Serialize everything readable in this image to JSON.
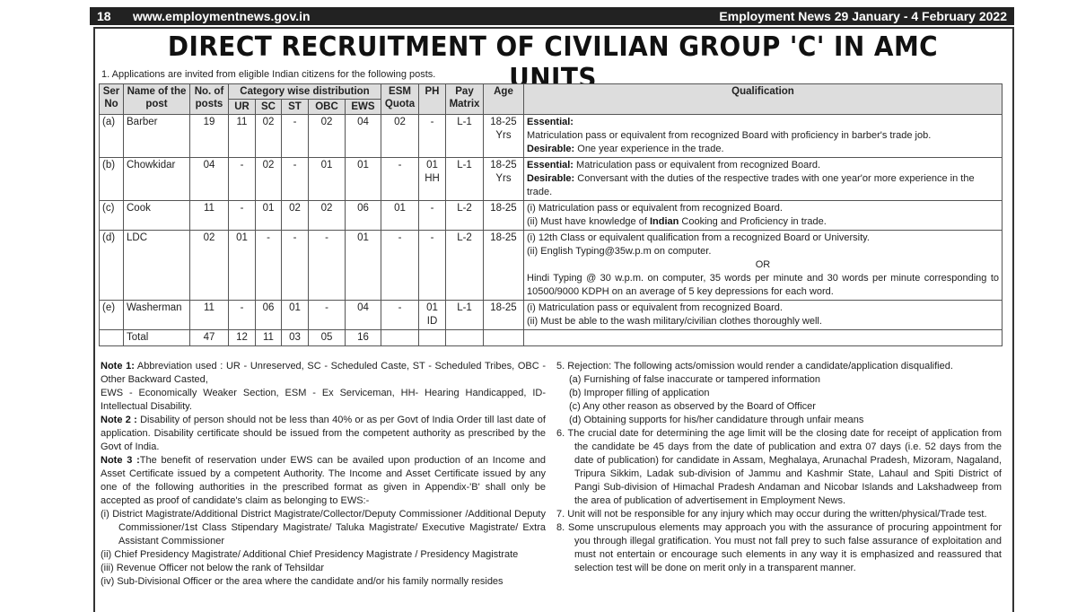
{
  "header": {
    "page_number": "18",
    "website": "www.employmentnews.gov.in",
    "edition": "Employment News 29 January - 4 February 2022"
  },
  "title": "DIRECT RECRUITMENT OF CIVILIAN GROUP 'C' IN AMC UNITS",
  "intro": "1.  Applications are invited from eligible Indian citizens for the following posts.",
  "table": {
    "headers": {
      "ser": "Ser No",
      "name": "Name of the post",
      "posts": "No. of posts",
      "category": "Category wise distribution",
      "ur": "UR",
      "sc": "SC",
      "st": "ST",
      "obc": "OBC",
      "ews": "EWS",
      "esm": "ESM Quota",
      "ph": "PH",
      "pay": "Pay Matrix",
      "age": "Age",
      "qualification": "Qualification"
    },
    "rows": [
      {
        "ser": "(a)",
        "name": "Barber",
        "posts": "19",
        "ur": "11",
        "sc": "02",
        "st": "-",
        "obc": "02",
        "ews": "04",
        "esm": "02",
        "ph": "-",
        "pay": "L-1",
        "age": "18-25 Yrs",
        "q": [
          "Essential:",
          "Matriculation pass or equivalent from recognized Board with proficiency in barber's trade job.",
          "Desirable:",
          " One year experience in the trade."
        ]
      },
      {
        "ser": "(b)",
        "name": "Chowkidar",
        "posts": "04",
        "ur": "-",
        "sc": "02",
        "st": "-",
        "obc": "01",
        "ews": "01",
        "esm": "-",
        "ph": "01 HH",
        "pay": "L-1",
        "age": "18-25 Yrs",
        "q": [
          "Essential:",
          " Matriculation pass or equivalent from recognized Board.",
          "Desirable:",
          " Conversant with the duties of the respective trades with one year'or more experience in the trade."
        ]
      },
      {
        "ser": "(c)",
        "name": "Cook",
        "posts": "11",
        "ur": "-",
        "sc": "01",
        "st": "02",
        "obc": "02",
        "ews": "06",
        "esm": "01",
        "ph": "-",
        "pay": "L-2",
        "age": "18-25",
        "q": [
          "(i)  Matriculation pass or equivalent from recognized Board.",
          "(ii)  Must have knowledge of ",
          "Indian",
          " Cooking and Proficiency in trade."
        ]
      },
      {
        "ser": "(d)",
        "name": "LDC",
        "posts": "02",
        "ur": "01",
        "sc": "-",
        "st": "-",
        "obc": "-",
        "ews": "01",
        "esm": "-",
        "ph": "-",
        "pay": "L-2",
        "age": "18-25",
        "q": [
          "(i)  12th Class or equivalent qualification from a recognized Board or University.",
          "(ii)  English Typing@35w.p.m on computer.",
          "OR",
          "Hindi Typing @ 30 w.p.m. on computer, 35 words per minute and 30 words per minute corresponding to 10500/9000 KDPH on an average of 5 key depressions for each word."
        ]
      },
      {
        "ser": "(e)",
        "name": "Washerman",
        "posts": "11",
        "ur": "-",
        "sc": "06",
        "st": "01",
        "obc": "-",
        "ews": "04",
        "esm": "-",
        "ph": "01 ID",
        "pay": "L-1",
        "age": "18-25",
        "q": [
          "(i)  Matriculation pass or equivalent from recognized Board.",
          "(ii)  Must be able to the wash military/civilian clothes thoroughly well."
        ]
      }
    ],
    "total": {
      "label": "Total",
      "posts": "47",
      "ur": "12",
      "sc": "11",
      "st": "03",
      "obc": "05",
      "ews": "16"
    }
  },
  "notes_left": {
    "n1_label": "Note 1:",
    "n1": " Abbreviation used : UR - Unreserved, SC - Scheduled Caste, ST - Scheduled Tribes, OBC - Other Backward Casted,",
    "n1b": "EWS - Economically Weaker Section, ESM - Ex Serviceman, HH- Hearing Handicapped, ID- Intellectual Disability.",
    "n2_label": "Note 2 :",
    "n2": " Disability of person should not be less than 40% or as per Govt of India Order till last date of application. Disability certificate should be issued from the competent authority as prescribed by the Govt of India.",
    "n3_label": "Note 3 :",
    "n3": "The benefit of reservation under EWS can be availed upon production of an Income and Asset Certificate issued by a competent Authority. The Income and Asset Certificate issued by any one of the following authorities in the prescribed format as given in Appendix-'B' shall only be accepted as proof of candidate's claim as belonging to EWS:-",
    "items": [
      "(i)  District Magistrate/Additional District Magistrate/Collector/Deputy Commissioner /Additional Deputy Commissioner/1st Class Stipendary Magistrate/ Taluka Magistrate/ Executive Magistrate/ Extra Assistant Commissioner",
      "(ii)  Chief Presidency Magistrate/ Additional Chief Presidency Magistrate / Presidency Magistrate",
      "(iii)  Revenue Officer not below the rank of Tehsildar",
      "(iv)  Sub-Divisional Officer or the area where the candidate and/or his family normally resides"
    ]
  },
  "notes_right": {
    "n5": "5. Rejection: The following acts/omission would render a candidate/application disqualified.",
    "n5_items": [
      "(a)  Furnishing of false inaccurate or tampered information",
      "(b)  Improper filling of application",
      "(c)  Any other reason as observed by the Board of Officer",
      "(d)  Obtaining supports for his/her candidature through unfair means"
    ],
    "n6": "6. The crucial date for determining the age limit will be the closing date for receipt of application from the candidate be 45 days from the date of publication and extra 07 days (i.e. 52 days from the date of publication) for candidate in Assam, Meghalaya, Arunachal Pradesh, Mizoram, Nagaland, Tripura Sikkim, Ladak sub-division of Jammu and Kashmir State, Lahaul and Spiti District of Pangi Sub-division of Himachal Pradesh Andaman and Nicobar Islands and Lakshadweep from the area of publication of advertisement in Employment News.",
    "n7": "7. Unit will not be responsible for any injury which may occur during the written/physical/Trade test.",
    "n8": "8. Some unscrupulous elements may approach you with the assurance of procuring appointment for you through illegal gratification.  You must not fall prey to such false assurance of exploitation and must not entertain or encourage such elements in any way it is emphasized and reassured that selection test will be done on merit only in a transparent manner."
  }
}
